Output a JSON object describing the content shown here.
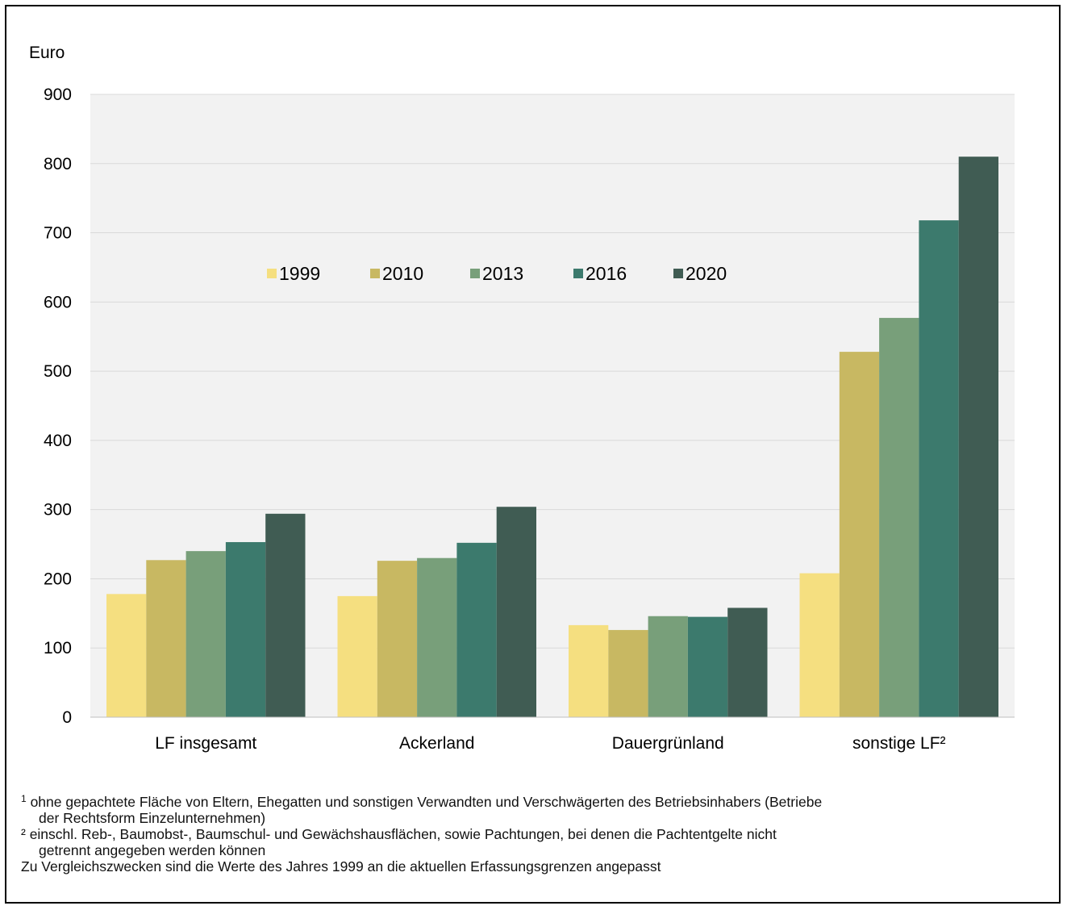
{
  "chart_data": {
    "type": "bar",
    "ylabel": "Euro",
    "ylim": [
      0,
      900
    ],
    "yticks": [
      0,
      100,
      200,
      300,
      400,
      500,
      600,
      700,
      800,
      900
    ],
    "grid": true,
    "legend_position": "top-center",
    "categories": [
      "LF insgesamt",
      "Ackerland",
      "Dauergrünland",
      "sonstige LF²"
    ],
    "series": [
      {
        "name": "1999",
        "color": "#f5df80",
        "values": [
          178,
          175,
          133,
          208
        ]
      },
      {
        "name": "2010",
        "color": "#c8b862",
        "values": [
          227,
          226,
          126,
          528
        ]
      },
      {
        "name": "2013",
        "color": "#789f7a",
        "values": [
          240,
          230,
          146,
          577
        ]
      },
      {
        "name": "2016",
        "color": "#3c7a6d",
        "values": [
          253,
          252,
          145,
          718
        ]
      },
      {
        "name": "2020",
        "color": "#405c53",
        "values": [
          294,
          304,
          158,
          810
        ]
      }
    ]
  },
  "footnotes": {
    "fn1_marker": "1",
    "fn1_line1": "ohne gepachtete Fläche von Eltern, Ehegatten und sonstigen Verwandten und Verschwägerten des Betriebsinhabers (Betriebe",
    "fn1_line2": "der Rechtsform  Einzelunternehmen)",
    "fn2_line1": "² einschl. Reb-, Baumobst-, Baumschul- und Gewächshausflächen, sowie Pachtungen, bei denen die Pachtentgelte nicht",
    "fn2_line2": "getrennt angegeben werden können",
    "note": "Zu Vergleichszwecken sind  die  Werte des Jahres 1999 an die aktuellen Erfassungsgrenzen angepasst"
  }
}
